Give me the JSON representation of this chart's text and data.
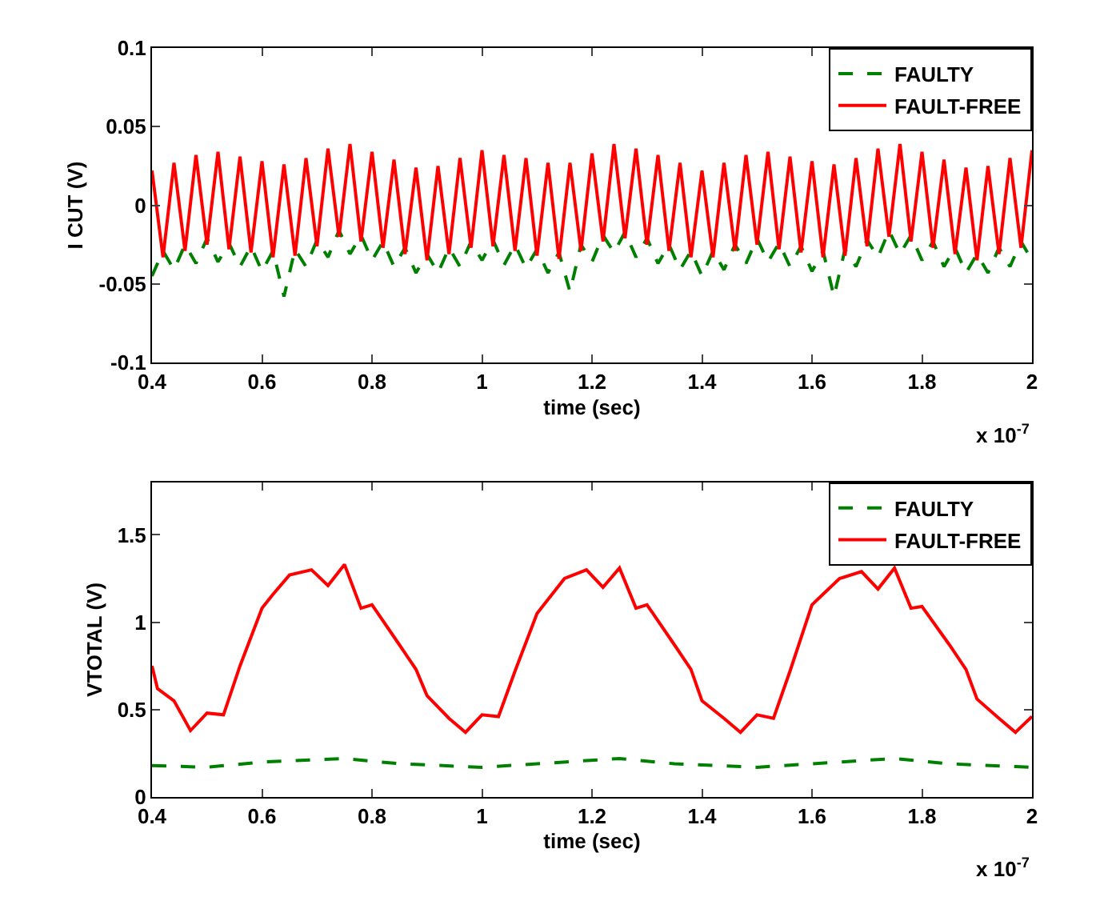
{
  "chart_data": [
    {
      "type": "line",
      "xlabel": "time (sec)",
      "ylabel": "I CUT (V)",
      "xlim": [
        0.4,
        2
      ],
      "xticks": [
        0.4,
        0.6,
        0.8,
        1,
        1.2,
        1.4,
        1.6,
        1.8,
        2
      ],
      "ylim": [
        -0.1,
        0.1
      ],
      "yticks": [
        -0.1,
        -0.05,
        0,
        0.05,
        0.1
      ],
      "grid": false,
      "legend": "top right",
      "marker": "none",
      "annotations": [
        "x 10$^{-7}$"
      ],
      "x": [
        0.4,
        0.42,
        0.44,
        0.46,
        0.48,
        0.5,
        0.52,
        0.54,
        0.56,
        0.58,
        0.6,
        0.62,
        0.64,
        0.66,
        0.68,
        0.7,
        0.72,
        0.74,
        0.76,
        0.78,
        0.8,
        0.82,
        0.84,
        0.86,
        0.88,
        0.9,
        0.92,
        0.94,
        0.96,
        0.98,
        1.0,
        1.02,
        1.04,
        1.06,
        1.08,
        1.1,
        1.12,
        1.14,
        1.16,
        1.18,
        1.2,
        1.22,
        1.24,
        1.26,
        1.28,
        1.3,
        1.32,
        1.34,
        1.36,
        1.38,
        1.4,
        1.42,
        1.44,
        1.46,
        1.48,
        1.5,
        1.52,
        1.54,
        1.56,
        1.58,
        1.6,
        1.62,
        1.64,
        1.66,
        1.68,
        1.7,
        1.72,
        1.74,
        1.76,
        1.78,
        1.8,
        1.82,
        1.84,
        1.86,
        1.88,
        1.9,
        1.92,
        1.94,
        1.96,
        1.98,
        2.0
      ],
      "series": [
        {
          "name": "FAULTY",
          "color": "#008000",
          "line_style": "dashed",
          "values": [
            -0.045,
            -0.029,
            -0.041,
            -0.025,
            -0.037,
            -0.021,
            -0.036,
            -0.024,
            -0.039,
            -0.026,
            -0.042,
            -0.029,
            -0.058,
            -0.028,
            -0.039,
            -0.022,
            -0.033,
            -0.016,
            -0.031,
            -0.019,
            -0.035,
            -0.023,
            -0.039,
            -0.027,
            -0.043,
            -0.031,
            -0.043,
            -0.027,
            -0.039,
            -0.023,
            -0.035,
            -0.022,
            -0.038,
            -0.025,
            -0.04,
            -0.028,
            -0.043,
            -0.03,
            -0.055,
            -0.025,
            -0.036,
            -0.019,
            -0.03,
            -0.017,
            -0.033,
            -0.021,
            -0.037,
            -0.025,
            -0.041,
            -0.029,
            -0.045,
            -0.029,
            -0.041,
            -0.025,
            -0.037,
            -0.021,
            -0.036,
            -0.024,
            -0.039,
            -0.026,
            -0.042,
            -0.029,
            -0.058,
            -0.028,
            -0.039,
            -0.022,
            -0.033,
            -0.016,
            -0.031,
            -0.019,
            -0.035,
            -0.023,
            -0.039,
            -0.027,
            -0.043,
            -0.031,
            -0.043,
            -0.027,
            -0.039,
            -0.023,
            -0.035
          ]
        },
        {
          "name": "FAULT-FREE",
          "color": "#ff0000",
          "line_style": "solid",
          "values": [
            0.022,
            -0.033,
            0.027,
            -0.029,
            0.032,
            -0.025,
            0.034,
            -0.028,
            0.031,
            -0.03,
            0.028,
            -0.033,
            0.026,
            -0.032,
            0.03,
            -0.026,
            0.036,
            -0.02,
            0.039,
            -0.023,
            0.034,
            -0.027,
            0.029,
            -0.031,
            0.024,
            -0.035,
            0.025,
            -0.031,
            0.03,
            -0.027,
            0.035,
            -0.026,
            0.032,
            -0.029,
            0.03,
            -0.032,
            0.027,
            -0.034,
            0.027,
            -0.029,
            0.033,
            -0.023,
            0.039,
            -0.021,
            0.036,
            -0.025,
            0.032,
            -0.029,
            0.027,
            -0.033,
            0.022,
            -0.033,
            0.027,
            -0.029,
            0.032,
            -0.025,
            0.034,
            -0.028,
            0.031,
            -0.03,
            0.028,
            -0.033,
            0.026,
            -0.032,
            0.03,
            -0.026,
            0.036,
            -0.02,
            0.039,
            -0.023,
            0.034,
            -0.027,
            0.029,
            -0.031,
            0.024,
            -0.035,
            0.025,
            -0.031,
            0.03,
            -0.027,
            0.035
          ]
        }
      ]
    },
    {
      "type": "line",
      "xlabel": "time (sec)",
      "ylabel": "VTOTAL (V)",
      "xlim": [
        0.4,
        2
      ],
      "xticks": [
        0.4,
        0.6,
        0.8,
        1,
        1.2,
        1.4,
        1.6,
        1.8,
        2
      ],
      "ylim": [
        0,
        1.8
      ],
      "yticks": [
        0,
        0.5,
        1,
        1.5
      ],
      "grid": false,
      "legend": "top right",
      "marker": "none",
      "annotations": [
        "x 10$^{-7}$"
      ],
      "series": [
        {
          "name": "FAULTY",
          "color": "#008000",
          "line_style": "dashed",
          "x": [
            0.4,
            0.5,
            0.6,
            0.75,
            0.85,
            1.0,
            1.25,
            1.35,
            1.5,
            1.75,
            1.85,
            2.0
          ],
          "values": [
            0.18,
            0.17,
            0.2,
            0.22,
            0.19,
            0.17,
            0.22,
            0.19,
            0.17,
            0.22,
            0.19,
            0.17
          ]
        },
        {
          "name": "FAULT-FREE",
          "color": "#ff0000",
          "line_style": "solid",
          "x": [
            0.4,
            0.41,
            0.44,
            0.47,
            0.5,
            0.53,
            0.56,
            0.6,
            0.62,
            0.65,
            0.69,
            0.72,
            0.75,
            0.78,
            0.8,
            0.85,
            0.88,
            0.9,
            0.94,
            0.97,
            1.0,
            1.03,
            1.06,
            1.1,
            1.15,
            1.19,
            1.22,
            1.25,
            1.28,
            1.3,
            1.35,
            1.38,
            1.4,
            1.44,
            1.47,
            1.5,
            1.53,
            1.56,
            1.6,
            1.65,
            1.69,
            1.72,
            1.75,
            1.78,
            1.8,
            1.85,
            1.88,
            1.9,
            1.94,
            1.97,
            2.0
          ],
          "values": [
            0.75,
            0.62,
            0.55,
            0.38,
            0.48,
            0.47,
            0.75,
            1.08,
            1.16,
            1.27,
            1.3,
            1.21,
            1.33,
            1.08,
            1.1,
            0.87,
            0.73,
            0.58,
            0.45,
            0.37,
            0.47,
            0.46,
            0.72,
            1.05,
            1.25,
            1.3,
            1.2,
            1.31,
            1.08,
            1.1,
            0.87,
            0.73,
            0.55,
            0.45,
            0.37,
            0.47,
            0.45,
            0.72,
            1.1,
            1.25,
            1.29,
            1.19,
            1.31,
            1.08,
            1.09,
            0.87,
            0.73,
            0.56,
            0.45,
            0.37,
            0.46
          ]
        }
      ]
    }
  ]
}
